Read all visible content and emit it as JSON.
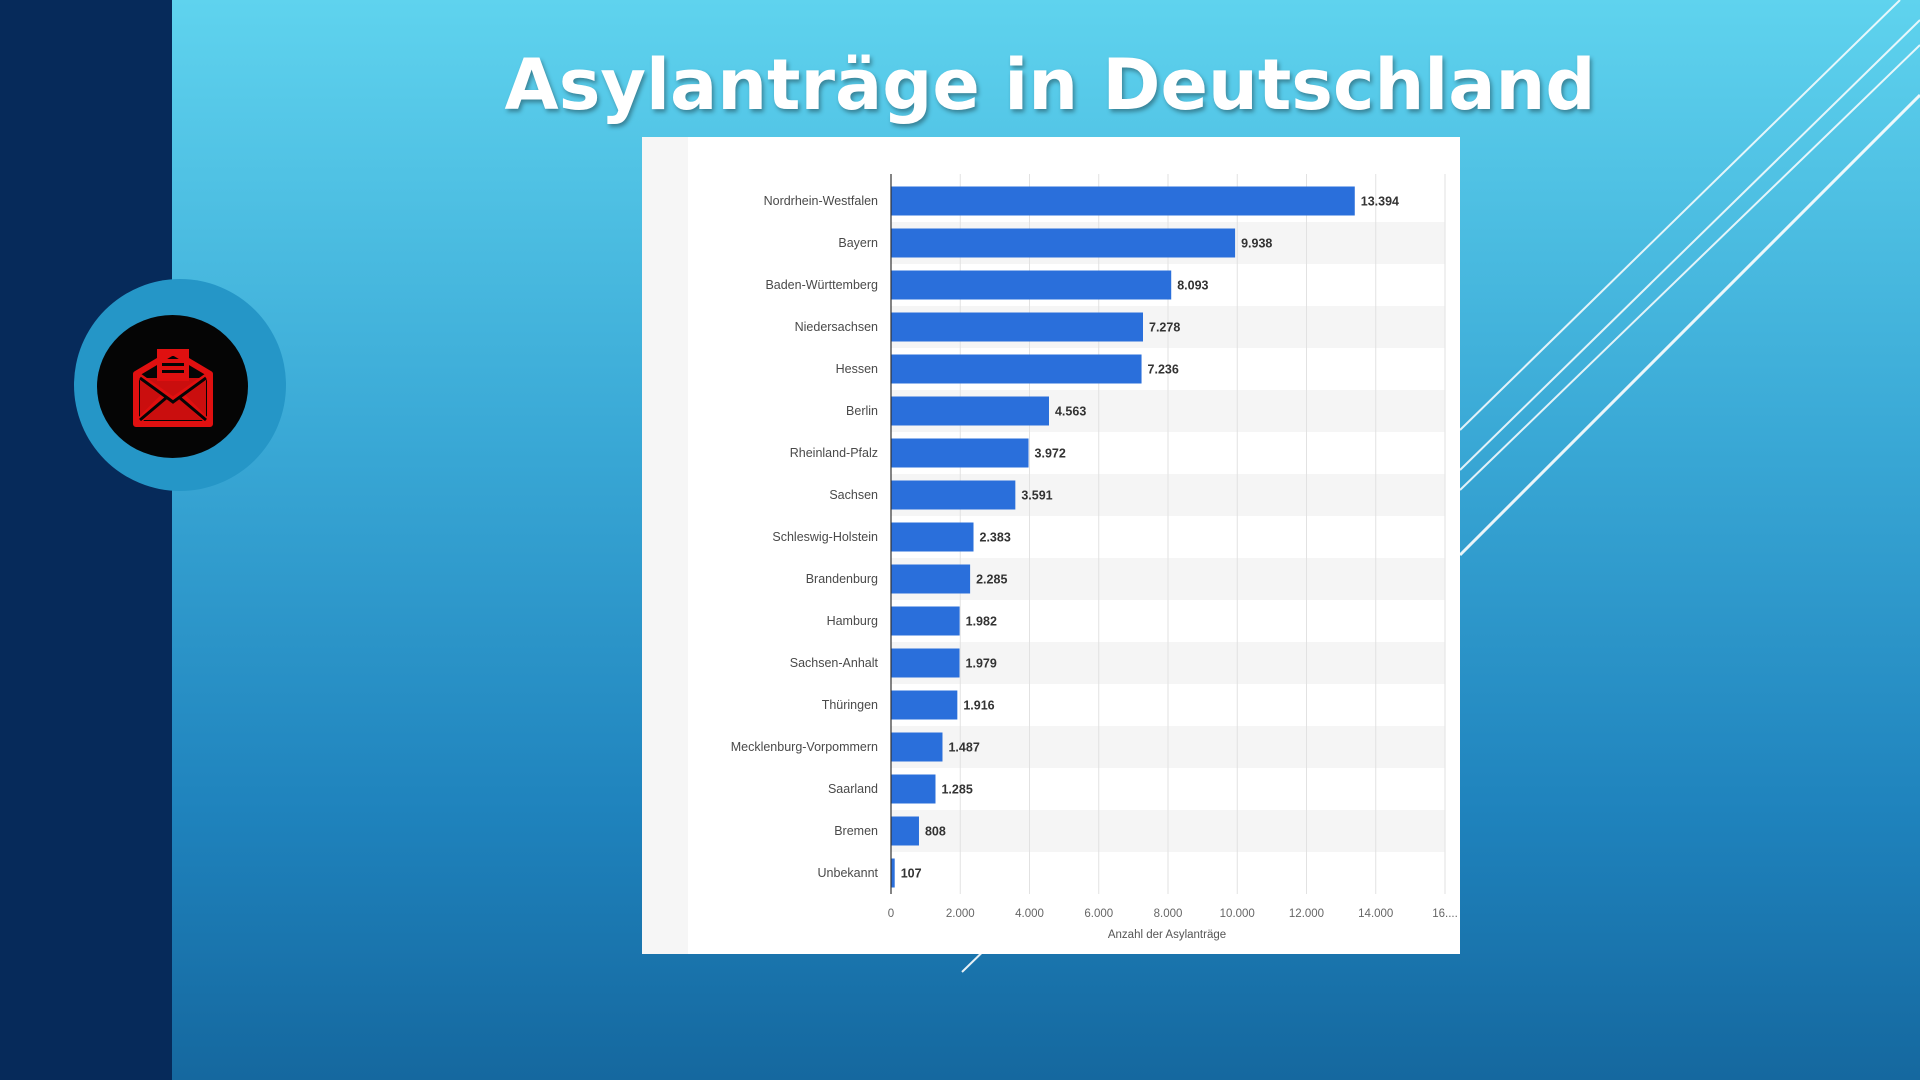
{
  "slide": {
    "title": "Asylanträge in Deutschland",
    "icon": "envelope-document-icon",
    "colors": {
      "band": "#062a5a",
      "icon_red": "#e01010",
      "bar": "#2a6fdb"
    }
  },
  "chart_data": {
    "type": "bar",
    "orientation": "horizontal",
    "categories": [
      "Nordrhein-Westfalen",
      "Bayern",
      "Baden-Württemberg",
      "Niedersachsen",
      "Hessen",
      "Berlin",
      "Rheinland-Pfalz",
      "Sachsen",
      "Schleswig-Holstein",
      "Brandenburg",
      "Hamburg",
      "Sachsen-Anhalt",
      "Thüringen",
      "Mecklenburg-Vorpommern",
      "Saarland",
      "Bremen",
      "Unbekannt"
    ],
    "values": [
      13394,
      9938,
      8093,
      7278,
      7236,
      4563,
      3972,
      3591,
      2383,
      2285,
      1982,
      1979,
      1916,
      1487,
      1285,
      808,
      107
    ],
    "value_labels": [
      "13.394",
      "9.938",
      "8.093",
      "7.278",
      "7.236",
      "4.563",
      "3.972",
      "3.591",
      "2.383",
      "2.285",
      "1.982",
      "1.979",
      "1.916",
      "1.487",
      "1.285",
      "808",
      "107"
    ],
    "xlabel": "Anzahl der Asylanträge",
    "xticks": [
      0,
      2000,
      4000,
      6000,
      8000,
      10000,
      12000,
      14000,
      16000
    ],
    "xtick_labels": [
      "0",
      "2.000",
      "4.000",
      "6.000",
      "8.000",
      "10.000",
      "12.000",
      "14.000",
      "16...."
    ],
    "xlim": [
      0,
      16000
    ],
    "grid": true,
    "bar_color": "#2a6fdb"
  }
}
